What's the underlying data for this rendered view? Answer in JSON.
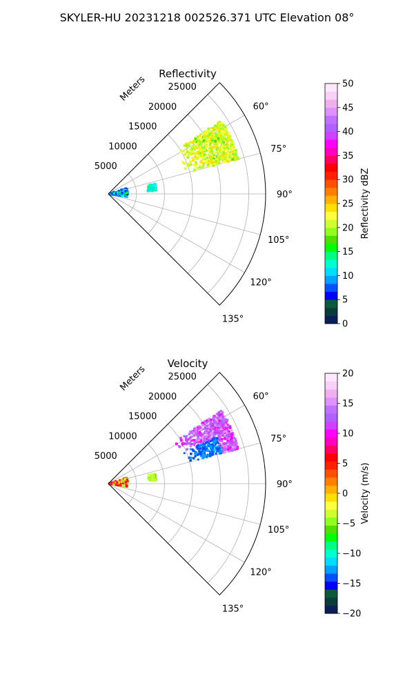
{
  "figure": {
    "title": "SKYLER-HU  20231218  002526.371 UTC Elevation 08°"
  },
  "chart_data": [
    {
      "type": "polar-sector",
      "title": "Reflectivity",
      "radial_axis_label": "Meters",
      "radial_ticks": [
        5000,
        10000,
        15000,
        20000,
        25000
      ],
      "radial_tick_labels": [
        "5000",
        "10000",
        "15000",
        "20000",
        "25000"
      ],
      "rmax": 28000,
      "angle_ticks_deg": [
        60,
        75,
        90,
        105,
        120,
        135
      ],
      "angle_tick_labels": [
        "60°",
        "75°",
        "90°",
        "105°",
        "120°",
        "135°"
      ],
      "theta_range_deg": [
        45,
        135
      ],
      "grid": true,
      "colorbar": {
        "label": "Reflectivity dBZ",
        "range": [
          0,
          50
        ],
        "ticks": [
          0,
          5,
          10,
          15,
          20,
          25,
          30,
          35,
          40,
          45,
          50
        ],
        "tick_labels": [
          "0",
          "5",
          "10",
          "15",
          "20",
          "25",
          "30",
          "35",
          "40",
          "45",
          "50"
        ]
      },
      "echo_regions": [
        {
          "theta_deg": [
            57,
            75
          ],
          "range_m": [
            14000,
            24000
          ],
          "value_range": [
            18,
            25
          ]
        },
        {
          "theta_deg": [
            78,
            86
          ],
          "range_m": [
            7000,
            8500
          ],
          "value_range": [
            10,
            14
          ]
        },
        {
          "theta_deg": [
            72,
            100
          ],
          "range_m": [
            0,
            3500
          ],
          "value_range": [
            5,
            16
          ]
        }
      ]
    },
    {
      "type": "polar-sector",
      "title": "Velocity",
      "radial_axis_label": "Meters",
      "radial_ticks": [
        5000,
        10000,
        15000,
        20000,
        25000
      ],
      "radial_tick_labels": [
        "5000",
        "10000",
        "15000",
        "20000",
        "25000"
      ],
      "rmax": 28000,
      "angle_ticks_deg": [
        60,
        75,
        90,
        105,
        120,
        135
      ],
      "angle_tick_labels": [
        "60°",
        "75°",
        "90°",
        "105°",
        "120°",
        "135°"
      ],
      "theta_range_deg": [
        45,
        135
      ],
      "grid": true,
      "colorbar": {
        "label": "Velocity (m/s)",
        "range": [
          -20,
          20
        ],
        "ticks": [
          -20,
          -15,
          -10,
          -5,
          0,
          5,
          10,
          15,
          20
        ],
        "tick_labels": [
          "−20",
          "−15",
          "−10",
          "−5",
          "0",
          "5",
          "10",
          "15",
          "20"
        ]
      },
      "echo_regions": [
        {
          "theta_deg": [
            57,
            75
          ],
          "range_m": [
            14000,
            24000
          ],
          "value_range": [
            10,
            16
          ]
        },
        {
          "theta_deg": [
            78,
            86
          ],
          "range_m": [
            7000,
            8500
          ],
          "value_range": [
            -6,
            -2
          ]
        },
        {
          "theta_deg": [
            72,
            100
          ],
          "range_m": [
            0,
            3500
          ],
          "value_range": [
            -6,
            8
          ]
        }
      ]
    }
  ],
  "colors": {
    "reflectivity_scale": [
      "#0a1e5a",
      "#0a3c3c",
      "#0a5a3c",
      "#0000ff",
      "#0050ff",
      "#00a0ff",
      "#00dcff",
      "#00ffd0",
      "#00ff80",
      "#00ff00",
      "#50e000",
      "#90ff20",
      "#d0ff30",
      "#ffff40",
      "#ffe000",
      "#ffb000",
      "#ff8000",
      "#ff5000",
      "#ff2000",
      "#ff0000",
      "#ff0060",
      "#ff00c0",
      "#ff00ff",
      "#d040ff",
      "#b060ff",
      "#c070ff",
      "#e090ff",
      "#f0b0f0",
      "#f8d0f8",
      "#ffe8ff"
    ],
    "velocity_scale": [
      "#0a1e5a",
      "#0a3c3c",
      "#0a5a3c",
      "#0000ff",
      "#0050ff",
      "#00a0ff",
      "#00dcff",
      "#00ffd0",
      "#00ff80",
      "#00ff00",
      "#50e000",
      "#90ff20",
      "#d0ff30",
      "#ffff40",
      "#ffe000",
      "#ffb000",
      "#ff8000",
      "#ff5000",
      "#ff2000",
      "#ff0000",
      "#ff0060",
      "#ff00c0",
      "#ff00ff",
      "#d040ff",
      "#b060ff",
      "#c070ff",
      "#e090ff",
      "#f0b0f0",
      "#f8d0f8",
      "#ffe8ff"
    ]
  }
}
